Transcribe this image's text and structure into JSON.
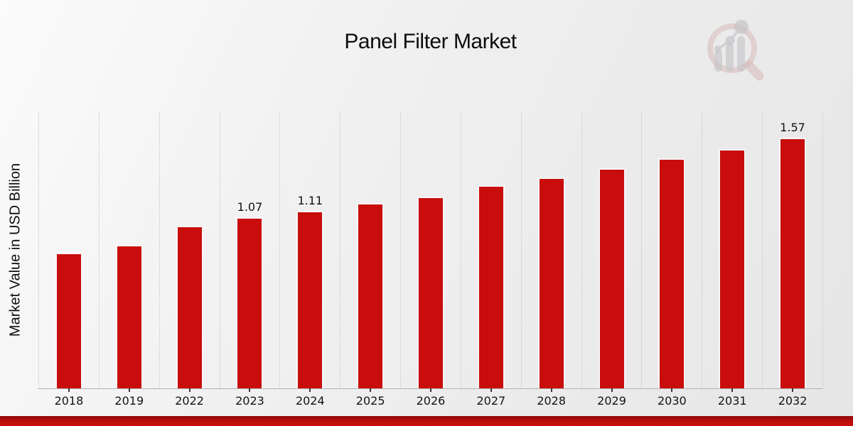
{
  "page": {
    "title": "Panel Filter Market",
    "y_axis_label": "Market Value in USD Billion"
  },
  "colors": {
    "bar": "#c90d0d",
    "bar_border": "#f7f7f7",
    "banner_red_dark": "#8e0909",
    "banner_red_bright": "#cb0e0e",
    "gridline": "#c6c6c6",
    "baseline": "#b3b3b3",
    "text": "#111111",
    "watermark_pink": "#d6b6b6",
    "watermark_gray": "#c3c3c8"
  },
  "watermark": {
    "icon": "magnifier-growth-chart-logo"
  },
  "chart_data": {
    "type": "bar",
    "title": "Panel Filter Market",
    "xlabel": "",
    "ylabel": "Market Value in USD Billion",
    "categories": [
      "2018",
      "2019",
      "2022",
      "2023",
      "2024",
      "2025",
      "2026",
      "2027",
      "2028",
      "2029",
      "2030",
      "2031",
      "2032"
    ],
    "values": [
      0.85,
      0.9,
      1.02,
      1.07,
      1.11,
      1.16,
      1.2,
      1.27,
      1.32,
      1.38,
      1.44,
      1.5,
      1.57
    ],
    "value_labels": [
      "",
      "",
      "",
      "1.07",
      "1.11",
      "",
      "",
      "",
      "",
      "",
      "",
      "",
      "1.57"
    ],
    "ylim": [
      0,
      1.73
    ],
    "y_tick_labels": "none",
    "grid": "vertical-dotted",
    "legend": "none",
    "bar_color": "#c90d0d"
  }
}
